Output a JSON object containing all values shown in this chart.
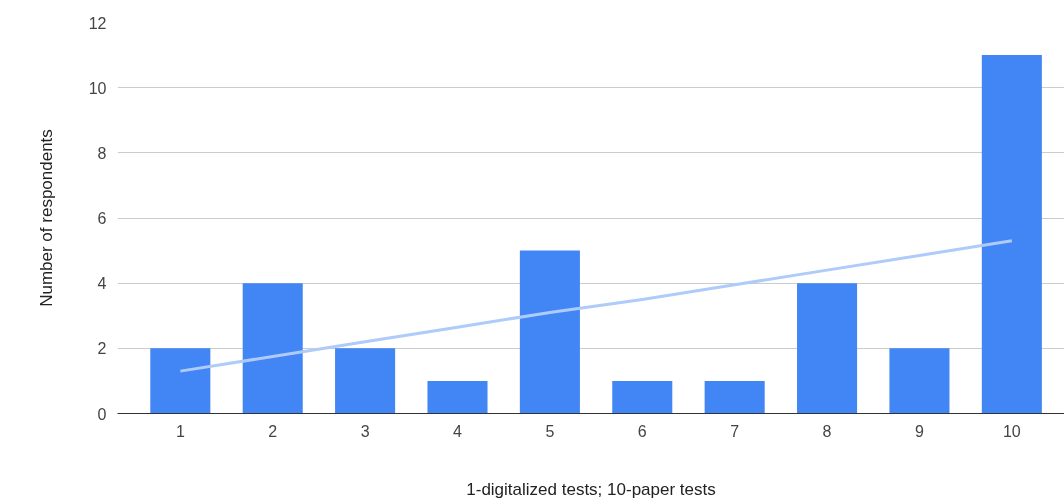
{
  "chart_data": {
    "type": "bar",
    "xlabel": "1-digitalized tests; 10-paper tests",
    "ylabel": "Number of respondents",
    "categories": [
      "1",
      "2",
      "3",
      "4",
      "5",
      "6",
      "7",
      "8",
      "9",
      "10"
    ],
    "series": [
      {
        "color": "#4285f4",
        "values": [
          2,
          4,
          2,
          1,
          5,
          1,
          1,
          4,
          2,
          11
        ]
      },
      {
        "type": "line",
        "color": "#aecbfa",
        "values": [
          1.3,
          1.75,
          2.2,
          2.65,
          3.1,
          3.5,
          3.95,
          4.4,
          4.85,
          5.3
        ]
      }
    ],
    "ylim": [
      0,
      12
    ],
    "yticks": [
      0,
      2,
      4,
      6,
      8,
      10,
      12
    ],
    "grid": "y"
  }
}
